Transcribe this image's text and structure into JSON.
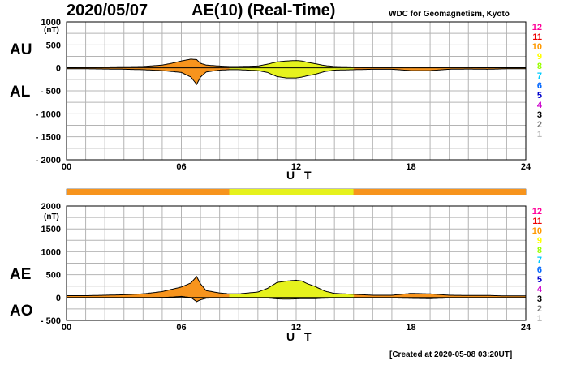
{
  "header": {
    "date": "2020/05/07",
    "title": "AE(10) (Real-Time)",
    "source": "WDC for Geomagnetism, Kyoto"
  },
  "footer": {
    "created": "[Created at 2020-05-08 03:20UT]"
  },
  "legend": {
    "labels": [
      "12",
      "11",
      "10",
      "9",
      "8",
      "7",
      "6",
      "5",
      "4",
      "3",
      "2",
      "1"
    ],
    "colors": [
      "#ff0099",
      "#ee0000",
      "#ff9900",
      "#ffff00",
      "#99ff00",
      "#00ccff",
      "#0066ff",
      "#0000cc",
      "#cc00cc",
      "#000000",
      "#777777",
      "#bbbbbb"
    ]
  },
  "station_bar": {
    "segments": [
      [
        0,
        8.5,
        "#f7941d"
      ],
      [
        8.5,
        15.0,
        "#e6f21d"
      ],
      [
        15.0,
        24,
        "#f7941d"
      ]
    ]
  },
  "chart_data": [
    {
      "type": "area",
      "id": "au_al",
      "unit": "(nT)",
      "ylim": [
        -2000,
        1000
      ],
      "yticks": [
        1000,
        500,
        0,
        -500,
        -1000,
        -1500,
        -2000
      ],
      "ytick_labels": [
        "1000",
        "500",
        "0",
        "- 500",
        "- 1000",
        "- 1500",
        "- 2000"
      ],
      "xlim": [
        0,
        24
      ],
      "xticks": [
        0,
        6,
        12,
        18,
        24
      ],
      "xtick_labels": [
        "00",
        "06",
        "12",
        "18",
        "24"
      ],
      "xlabel": "U T",
      "upper_label": "AU",
      "lower_label": "AL",
      "grid": true,
      "series": [
        {
          "name": "AU",
          "x": [
            0,
            1,
            2,
            3,
            4,
            5,
            5.5,
            6,
            6.5,
            6.8,
            7,
            7.3,
            8,
            8.5,
            9,
            10,
            10.5,
            11,
            11.5,
            12,
            12.3,
            12.6,
            13,
            13.5,
            14,
            15,
            16,
            17,
            18,
            19,
            20,
            21,
            22,
            23,
            24
          ],
          "values": [
            10,
            15,
            20,
            25,
            30,
            60,
            100,
            150,
            190,
            180,
            100,
            60,
            40,
            30,
            30,
            40,
            80,
            130,
            150,
            160,
            150,
            120,
            90,
            50,
            30,
            20,
            15,
            15,
            20,
            15,
            15,
            15,
            10,
            10,
            10
          ]
        },
        {
          "name": "AL",
          "x": [
            0,
            1,
            2,
            3,
            4,
            5,
            5.5,
            6,
            6.5,
            6.8,
            7,
            7.3,
            8,
            8.5,
            9,
            10,
            10.5,
            11,
            11.5,
            12,
            12.3,
            12.6,
            13,
            13.5,
            14,
            15,
            16,
            17,
            18,
            19,
            20,
            21,
            22,
            23,
            24
          ],
          "values": [
            -20,
            -20,
            -25,
            -30,
            -40,
            -60,
            -80,
            -100,
            -200,
            -360,
            -200,
            -90,
            -50,
            -40,
            -40,
            -60,
            -100,
            -190,
            -220,
            -220,
            -200,
            -170,
            -140,
            -80,
            -50,
            -40,
            -30,
            -30,
            -60,
            -60,
            -30,
            -25,
            -30,
            -20,
            -20
          ]
        }
      ],
      "fill_colors": [
        "#f7941d",
        "#e6f21d"
      ]
    },
    {
      "type": "area",
      "id": "ae_ao",
      "unit": "(nT)",
      "ylim": [
        -500,
        2000
      ],
      "yticks": [
        2000,
        1500,
        1000,
        500,
        0,
        -500
      ],
      "ytick_labels": [
        "2000",
        "1500",
        "1000",
        "500",
        "0",
        "- 500"
      ],
      "xlim": [
        0,
        24
      ],
      "xticks": [
        0,
        6,
        12,
        18,
        24
      ],
      "xtick_labels": [
        "00",
        "06",
        "12",
        "18",
        "24"
      ],
      "xlabel": "U T",
      "upper_label": "AE",
      "lower_label": "AO",
      "grid": true,
      "series": [
        {
          "name": "AE",
          "x": [
            0,
            1,
            2,
            3,
            4,
            5,
            5.5,
            6,
            6.5,
            6.8,
            7,
            7.3,
            8,
            8.5,
            9,
            10,
            10.5,
            11,
            11.5,
            12,
            12.3,
            12.6,
            13,
            13.5,
            14,
            15,
            16,
            17,
            18,
            19,
            20,
            21,
            22,
            23,
            24
          ],
          "values": [
            40,
            40,
            50,
            60,
            80,
            130,
            180,
            230,
            320,
            460,
            300,
            150,
            100,
            80,
            80,
            120,
            200,
            330,
            360,
            380,
            360,
            300,
            240,
            140,
            90,
            70,
            50,
            50,
            90,
            80,
            50,
            45,
            45,
            35,
            35
          ]
        },
        {
          "name": "AO",
          "x": [
            0,
            1,
            2,
            3,
            4,
            5,
            5.5,
            6,
            6.5,
            6.8,
            7,
            7.3,
            8,
            8.5,
            9,
            10,
            10.5,
            11,
            11.5,
            12,
            12.3,
            12.6,
            13,
            13.5,
            14,
            15,
            16,
            17,
            18,
            19,
            20,
            21,
            22,
            23,
            24
          ],
          "values": [
            -5,
            -5,
            -5,
            -5,
            -5,
            0,
            10,
            25,
            0,
            -90,
            -50,
            -15,
            -5,
            -5,
            -5,
            -10,
            -10,
            -30,
            -35,
            -30,
            -25,
            -25,
            -25,
            -15,
            -10,
            -10,
            -10,
            -10,
            -20,
            -25,
            -10,
            -5,
            -10,
            -5,
            -5
          ]
        }
      ],
      "fill_colors": [
        "#f7941d",
        "#e6f21d"
      ]
    }
  ]
}
